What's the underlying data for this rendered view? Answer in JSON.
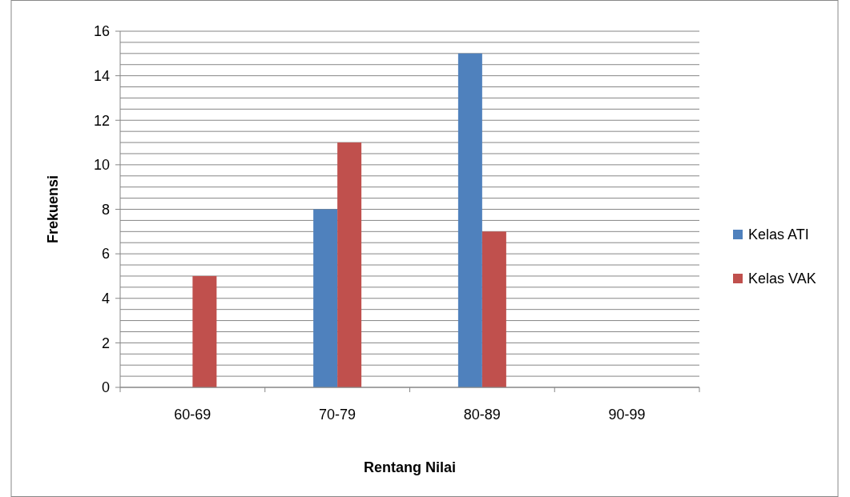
{
  "chart_data": {
    "type": "bar",
    "xlabel": "Rentang Nilai",
    "ylabel": "Frekuensi",
    "categories": [
      "60-69",
      "70-79",
      "80-89",
      "90-99"
    ],
    "series": [
      {
        "name": "Kelas ATI",
        "color": "#4f81bd",
        "values": [
          0,
          8,
          15,
          0
        ]
      },
      {
        "name": "Kelas VAK",
        "color": "#c0504d",
        "values": [
          5,
          11,
          7,
          0
        ]
      }
    ],
    "ylim": [
      0,
      16
    ],
    "yticks": [
      0,
      {
        "value": 0.5,
        "label": null
      },
      {
        "value": 1,
        "label": null
      },
      {
        "value": 1.5,
        "label": null
      },
      2,
      {
        "value": 2.5,
        "label": null
      },
      {
        "value": 3,
        "label": null
      },
      {
        "value": 3.5,
        "label": null
      },
      4,
      {
        "value": 4.5,
        "label": null
      },
      {
        "value": 5,
        "label": null
      },
      {
        "value": 5.5,
        "label": null
      },
      6,
      {
        "value": 6.5,
        "label": null
      },
      {
        "value": 7,
        "label": null
      },
      {
        "value": 7.5,
        "label": null
      },
      8,
      {
        "value": 8.5,
        "label": null
      },
      {
        "value": 9,
        "label": null
      },
      {
        "value": 9.5,
        "label": null
      },
      10,
      {
        "value": 10.5,
        "label": null
      },
      {
        "value": 11,
        "label": null
      },
      {
        "value": 11.5,
        "label": null
      },
      12,
      {
        "value": 12.5,
        "label": null
      },
      {
        "value": 13,
        "label": null
      },
      {
        "value": 13.5,
        "label": null
      },
      14,
      {
        "value": 14.5,
        "label": null
      },
      {
        "value": 15,
        "label": null
      },
      {
        "value": 15.5,
        "label": null
      },
      16
    ],
    "grid": "y",
    "legend": "right"
  }
}
